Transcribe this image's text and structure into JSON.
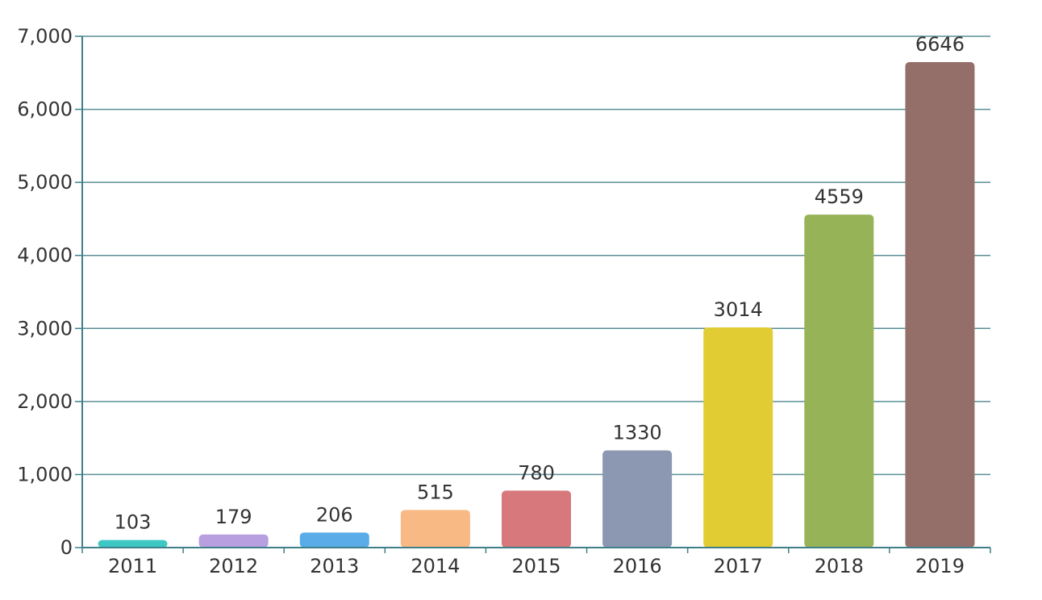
{
  "chart_data": {
    "type": "bar",
    "title": "",
    "xlabel": "",
    "ylabel": "",
    "categories": [
      "2011",
      "2012",
      "2013",
      "2014",
      "2015",
      "2016",
      "2017",
      "2018",
      "2019"
    ],
    "values": [
      103,
      179,
      206,
      515,
      780,
      1330,
      3014,
      4559,
      6646
    ],
    "data_labels": [
      "103",
      "179",
      "206",
      "515",
      "780",
      "1330",
      "3014",
      "4559",
      "6646"
    ],
    "ylim": [
      0,
      7000
    ],
    "yticks": [
      0,
      1000,
      2000,
      3000,
      4000,
      5000,
      6000,
      7000
    ],
    "ytick_labels": [
      "0",
      "1,000",
      "2,000",
      "3,000",
      "4,000",
      "5,000",
      "6,000",
      "7,000"
    ],
    "grid": true,
    "legend": "none",
    "colors": [
      "#3ec8c4",
      "#b79fe0",
      "#5aace8",
      "#f9b985",
      "#d6787c",
      "#8c98b2",
      "#e2cc34",
      "#96b358",
      "#946f6a"
    ],
    "axis_color": "#3f7f88"
  }
}
